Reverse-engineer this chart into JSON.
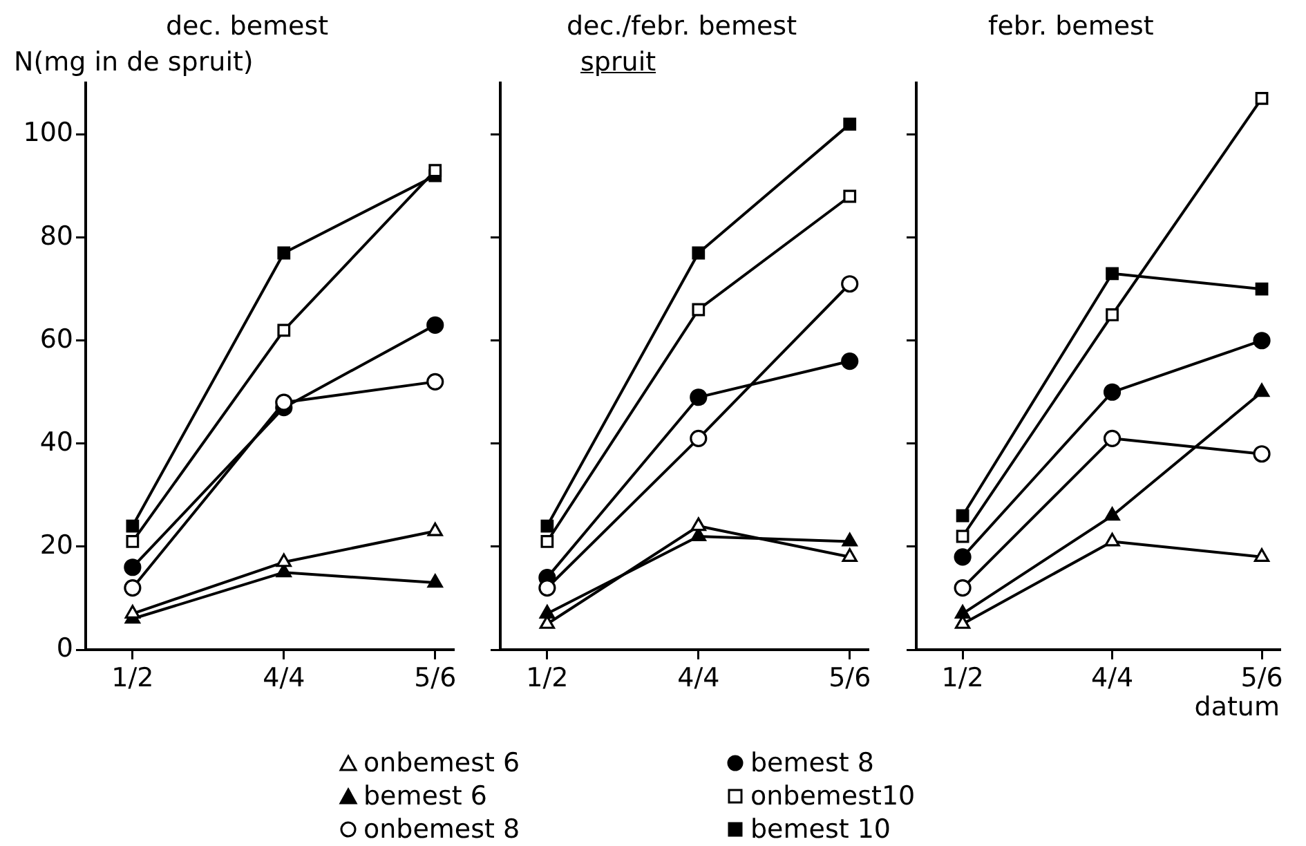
{
  "chart_data": [
    {
      "type": "line",
      "title": "dec. bemest",
      "ylabel": "N(mg in de spruit)",
      "categories": [
        "1/2",
        "4/4",
        "5/6"
      ],
      "ylim": [
        0,
        110
      ],
      "yticks": [
        0,
        20,
        40,
        60,
        80,
        100
      ],
      "grid": false,
      "line_style": "solid",
      "series": [
        {
          "color": "#ffffff",
          "marker": "triangle",
          "values": [
            7,
            17,
            23
          ]
        },
        {
          "color": "#000000",
          "marker": "triangle",
          "values": [
            6,
            15,
            13
          ]
        },
        {
          "color": "#ffffff",
          "marker": "circle",
          "values": [
            12,
            48,
            52
          ]
        },
        {
          "color": "#000000",
          "marker": "circle",
          "values": [
            16,
            47,
            63
          ]
        },
        {
          "color": "#ffffff",
          "marker": "square",
          "values": [
            21,
            62,
            93
          ]
        },
        {
          "color": "#000000",
          "marker": "square",
          "values": [
            24,
            77,
            92
          ]
        }
      ]
    },
    {
      "type": "line",
      "title": "dec./febr. bemest",
      "subtitle": "spruit",
      "categories": [
        "1/2",
        "4/4",
        "5/6"
      ],
      "ylim": [
        0,
        110
      ],
      "yticks": [
        0,
        20,
        40,
        60,
        80,
        100
      ],
      "tick_labels": "x",
      "grid": false,
      "line_style": "solid",
      "legend": "bottom",
      "series": [
        {
          "name": "onbemest 6",
          "color": "#ffffff",
          "marker": "triangle",
          "values": [
            5,
            24,
            18
          ]
        },
        {
          "name": "bemest 6",
          "color": "#000000",
          "marker": "triangle",
          "values": [
            7,
            22,
            21
          ]
        },
        {
          "name": "onbemest 8",
          "color": "#ffffff",
          "marker": "circle",
          "values": [
            12,
            41,
            71
          ]
        },
        {
          "name": "bemest 8",
          "color": "#000000",
          "marker": "circle",
          "values": [
            14,
            49,
            56
          ]
        },
        {
          "name": "onbemest10",
          "color": "#ffffff",
          "marker": "square",
          "values": [
            21,
            66,
            88
          ]
        },
        {
          "name": "bemest 10",
          "color": "#000000",
          "marker": "square",
          "values": [
            24,
            77,
            102
          ]
        }
      ]
    },
    {
      "type": "line",
      "title": "febr. bemest",
      "xlabel": "datum",
      "categories": [
        "1/2",
        "4/4",
        "5/6"
      ],
      "ylim": [
        0,
        110
      ],
      "yticks": [
        0,
        20,
        40,
        60,
        80,
        100
      ],
      "tick_labels": "x",
      "grid": false,
      "line_style": "solid",
      "series": [
        {
          "color": "#ffffff",
          "marker": "triangle",
          "values": [
            5,
            21,
            18
          ]
        },
        {
          "color": "#000000",
          "marker": "triangle",
          "values": [
            7,
            26,
            50
          ]
        },
        {
          "color": "#ffffff",
          "marker": "circle",
          "values": [
            12,
            41,
            38
          ]
        },
        {
          "color": "#000000",
          "marker": "circle",
          "values": [
            18,
            50,
            60
          ]
        },
        {
          "color": "#ffffff",
          "marker": "square",
          "values": [
            22,
            65,
            107
          ]
        },
        {
          "color": "#000000",
          "marker": "square",
          "values": [
            26,
            73,
            70
          ]
        }
      ]
    }
  ]
}
